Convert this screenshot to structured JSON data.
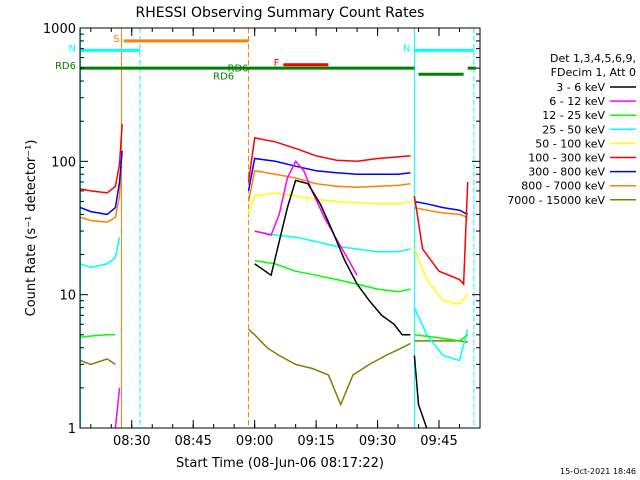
{
  "chart_data": {
    "type": "line",
    "title": "RHESSI Observing Summary Count Rates",
    "xlabel": "Start Time (08-Jun-06 08:17:22)",
    "ylabel": "Count Rate (s⁻¹ detector⁻¹)",
    "yscale": "log",
    "ylim": [
      1,
      1000
    ],
    "xlim": [
      "08:17:22",
      "09:55:00"
    ],
    "x_ticks": [
      "08:30",
      "08:45",
      "09:00",
      "09:15",
      "09:30",
      "09:45"
    ],
    "y_ticks": [
      "1",
      "10",
      "100",
      "1000"
    ],
    "grid": false,
    "legend_position": "right",
    "legend_header": [
      "Det 1,3,4,5,6,9,",
      "FDecim 1, Att 0"
    ],
    "timestamp": "15-Oct-2021 18:46",
    "flag_bars": [
      {
        "label": "S",
        "color": "#ff8000",
        "start": "08:28:00",
        "end": "08:58:30",
        "y": 800
      },
      {
        "label": "N",
        "color": "#00ffff",
        "start": "08:17:22",
        "end": "08:32:00",
        "y": 680
      },
      {
        "label": "N",
        "color": "#00ffff",
        "start": "09:39:00",
        "end": "09:53:30",
        "y": 680
      },
      {
        "label": "F",
        "color": "#ff0000",
        "start": "09:07:00",
        "end": "09:18:00",
        "y": 530
      },
      {
        "label": "RD6",
        "color": "#008000",
        "start": "08:17:22",
        "end": "09:39:00",
        "y": 500
      },
      {
        "label": "",
        "color": "#008000",
        "start": "09:40:00",
        "end": "09:51:00",
        "y": 450
      },
      {
        "label": "",
        "color": "#008000",
        "start": "09:52:00",
        "end": "09:54:00",
        "y": 500
      }
    ],
    "flag_labels": [
      {
        "text": "RD6",
        "color": "#008000",
        "x": "08:55:00",
        "y": 410
      },
      {
        "text": "RD6",
        "color": "#008000",
        "x": "08:58:30",
        "y": 470
      }
    ],
    "night_lines": [
      {
        "color": "#00ffff",
        "time": "08:17:30",
        "style": "solid"
      },
      {
        "color": "#00ffff",
        "time": "08:32:00",
        "style": "dashed"
      },
      {
        "color": "#ff8000",
        "time": "08:27:30",
        "style": "solid"
      },
      {
        "color": "#ff8000",
        "time": "08:58:30",
        "style": "dashed"
      },
      {
        "color": "#00ffff",
        "time": "09:39:00",
        "style": "solid"
      },
      {
        "color": "#00ffff",
        "time": "09:53:30",
        "style": "dashed"
      }
    ],
    "series": [
      {
        "name": "3 - 6 keV",
        "color": "#000000",
        "segments": [
          [
            [
              "09:00",
              17
            ],
            [
              "09:04",
              14
            ],
            [
              "09:06",
              25
            ],
            [
              "09:08",
              45
            ],
            [
              "09:10",
              72
            ],
            [
              "09:13",
              68
            ],
            [
              "09:16",
              48
            ],
            [
              "09:19",
              30
            ],
            [
              "09:22",
              18
            ],
            [
              "09:25",
              12
            ],
            [
              "09:28",
              9
            ],
            [
              "09:31",
              7
            ],
            [
              "09:34",
              6
            ],
            [
              "09:36",
              5
            ],
            [
              "09:38",
              5
            ]
          ],
          [
            [
              "09:39",
              3.5
            ],
            [
              "09:40",
              1.5
            ],
            [
              "09:42",
              1.0
            ]
          ]
        ]
      },
      {
        "name": "6 - 12 keV",
        "color": "#ff00ff",
        "segments": [
          [
            [
              "08:26",
              1.0
            ],
            [
              "08:27",
              2.0
            ]
          ],
          [
            [
              "09:00",
              30
            ],
            [
              "09:04",
              28
            ],
            [
              "09:06",
              40
            ],
            [
              "09:08",
              75
            ],
            [
              "09:10",
              100
            ],
            [
              "09:12",
              85
            ],
            [
              "09:14",
              60
            ],
            [
              "09:17",
              38
            ],
            [
              "09:20",
              26
            ],
            [
              "09:23",
              18
            ],
            [
              "09:25",
              14
            ]
          ]
        ]
      },
      {
        "name": "12 - 25 keV",
        "color": "#00ff00",
        "segments": [
          [
            [
              "08:17:30",
              4.8
            ],
            [
              "08:20",
              4.9
            ],
            [
              "08:24",
              5.0
            ],
            [
              "08:26",
              5.0
            ]
          ],
          [
            [
              "09:00",
              18
            ],
            [
              "09:05",
              17
            ],
            [
              "09:10",
              15
            ],
            [
              "09:15",
              14
            ],
            [
              "09:20",
              13
            ],
            [
              "09:25",
              12
            ],
            [
              "09:30",
              11
            ],
            [
              "09:35",
              10.5
            ],
            [
              "09:38",
              11
            ]
          ],
          [
            [
              "09:39",
              5
            ],
            [
              "09:44",
              4.8
            ],
            [
              "09:50",
              4.5
            ],
            [
              "09:52",
              5.0
            ]
          ]
        ]
      },
      {
        "name": "25 - 50 keV",
        "color": "#00ffff",
        "segments": [
          [
            [
              "08:17:30",
              17
            ],
            [
              "08:20",
              16
            ],
            [
              "08:24",
              17
            ],
            [
              "08:26",
              19
            ],
            [
              "08:27",
              27
            ]
          ],
          [
            [
              "09:00",
              30
            ],
            [
              "09:05",
              28
            ],
            [
              "09:10",
              27
            ],
            [
              "09:15",
              25
            ],
            [
              "09:20",
              23
            ],
            [
              "09:25",
              22
            ],
            [
              "09:30",
              21
            ],
            [
              "09:35",
              21
            ],
            [
              "09:38",
              22
            ]
          ],
          [
            [
              "09:39",
              8
            ],
            [
              "09:42",
              5
            ],
            [
              "09:46",
              3.5
            ],
            [
              "09:50",
              3.2
            ],
            [
              "09:52",
              5.5
            ]
          ]
        ]
      },
      {
        "name": "50 - 100 keV",
        "color": "#ffff00",
        "segments": [
          [
            [
              "08:58:30",
              40
            ],
            [
              "09:00",
              55
            ],
            [
              "09:05",
              58
            ],
            [
              "09:10",
              55
            ],
            [
              "09:15",
              52
            ],
            [
              "09:20",
              50
            ],
            [
              "09:25",
              49
            ],
            [
              "09:30",
              48
            ],
            [
              "09:35",
              48
            ],
            [
              "09:38",
              50
            ]
          ],
          [
            [
              "09:39",
              22
            ],
            [
              "09:42",
              13
            ],
            [
              "09:46",
              9
            ],
            [
              "09:50",
              8.5
            ],
            [
              "09:52",
              10
            ]
          ]
        ]
      },
      {
        "name": "100 - 300 keV",
        "color": "#ff0000",
        "segments": [
          [
            [
              "08:17:30",
              62
            ],
            [
              "08:20",
              60
            ],
            [
              "08:24",
              58
            ],
            [
              "08:26",
              65
            ],
            [
              "08:27",
              95
            ],
            [
              "08:27:40",
              190
            ]
          ],
          [
            [
              "08:58:30",
              70
            ],
            [
              "09:00",
              150
            ],
            [
              "09:05",
              140
            ],
            [
              "09:10",
              125
            ],
            [
              "09:15",
              110
            ],
            [
              "09:20",
              102
            ],
            [
              "09:25",
              100
            ],
            [
              "09:30",
              105
            ],
            [
              "09:35",
              108
            ],
            [
              "09:38",
              110
            ]
          ],
          [
            [
              "09:39",
              55
            ],
            [
              "09:41",
              22
            ],
            [
              "09:45",
              15
            ],
            [
              "09:50",
              13
            ],
            [
              "09:51",
              12
            ],
            [
              "09:52",
              70
            ]
          ]
        ]
      },
      {
        "name": "300 - 800 keV",
        "color": "#0000ff",
        "segments": [
          [
            [
              "08:17:30",
              45
            ],
            [
              "08:20",
              42
            ],
            [
              "08:24",
              40
            ],
            [
              "08:26",
              45
            ],
            [
              "08:27",
              70
            ],
            [
              "08:27:40",
              120
            ]
          ],
          [
            [
              "08:58:30",
              60
            ],
            [
              "09:00",
              105
            ],
            [
              "09:05",
              100
            ],
            [
              "09:10",
              92
            ],
            [
              "09:15",
              85
            ],
            [
              "09:20",
              82
            ],
            [
              "09:25",
              80
            ],
            [
              "09:30",
              80
            ],
            [
              "09:35",
              80
            ],
            [
              "09:38",
              82
            ]
          ],
          [
            [
              "09:39",
              50
            ],
            [
              "09:42",
              48
            ],
            [
              "09:46",
              45
            ],
            [
              "09:50",
              43
            ],
            [
              "09:52",
              40
            ]
          ]
        ]
      },
      {
        "name": "800 - 7000 keV",
        "color": "#ff8000",
        "segments": [
          [
            [
              "08:17:30",
              38
            ],
            [
              "08:20",
              36
            ],
            [
              "08:24",
              35
            ],
            [
              "08:26",
              38
            ],
            [
              "08:27",
              55
            ],
            [
              "08:27:30",
              95
            ]
          ],
          [
            [
              "08:58:30",
              50
            ],
            [
              "09:00",
              85
            ],
            [
              "09:05",
              80
            ],
            [
              "09:10",
              75
            ],
            [
              "09:15",
              68
            ],
            [
              "09:20",
              65
            ],
            [
              "09:25",
              64
            ],
            [
              "09:30",
              65
            ],
            [
              "09:35",
              66
            ],
            [
              "09:38",
              68
            ]
          ],
          [
            [
              "09:39",
              45
            ],
            [
              "09:42",
              43
            ],
            [
              "09:46",
              41
            ],
            [
              "09:50",
              40
            ],
            [
              "09:52",
              38
            ]
          ]
        ]
      },
      {
        "name": "7000 - 15000 keV",
        "color": "#808000",
        "segments": [
          [
            [
              "08:17:30",
              3.2
            ],
            [
              "08:20",
              3.0
            ],
            [
              "08:24",
              3.3
            ],
            [
              "08:26",
              3.0
            ]
          ],
          [
            [
              "08:58:30",
              5.5
            ],
            [
              "09:00",
              5.0
            ],
            [
              "09:03",
              4.0
            ],
            [
              "09:06",
              3.5
            ],
            [
              "09:10",
              3.0
            ],
            [
              "09:14",
              2.8
            ],
            [
              "09:18",
              2.5
            ],
            [
              "09:21",
              1.5
            ],
            [
              "09:24",
              2.5
            ],
            [
              "09:28",
              3.0
            ],
            [
              "09:32",
              3.5
            ],
            [
              "09:36",
              4.0
            ],
            [
              "09:38",
              4.3
            ]
          ],
          [
            [
              "09:39",
              4.5
            ],
            [
              "09:42",
              4.5
            ],
            [
              "09:46",
              4.5
            ],
            [
              "09:50",
              4.5
            ],
            [
              "09:52",
              4.4
            ]
          ]
        ]
      }
    ]
  }
}
